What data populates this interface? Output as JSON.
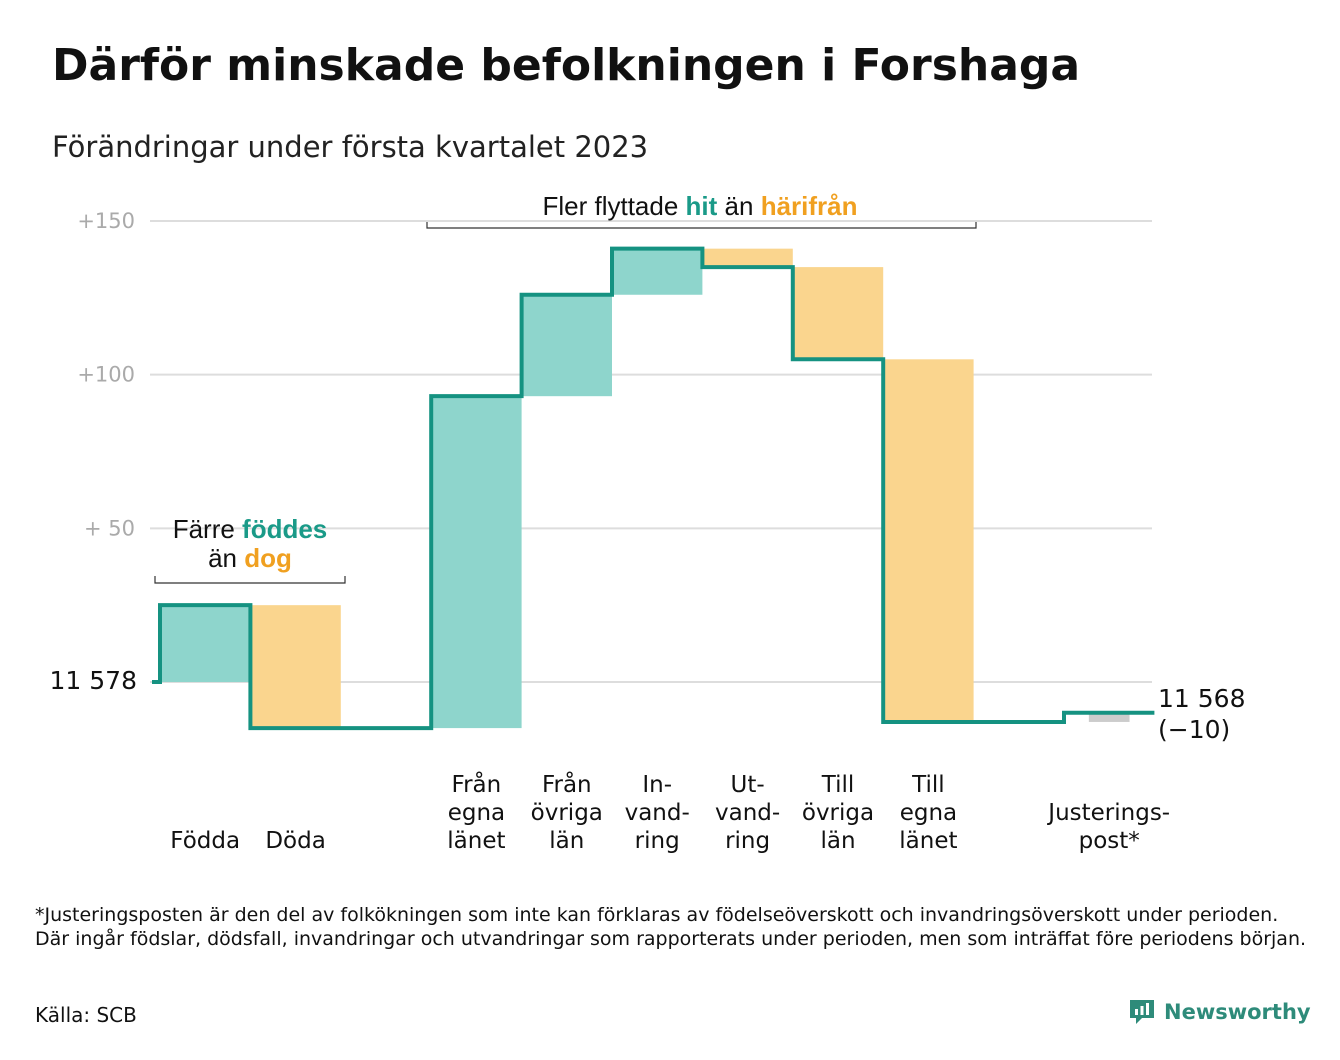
{
  "title": "Därför minskade befolkningen i Forshaga",
  "subtitle": "Förändringar under första kvartalet 2023",
  "footnote": "*Justeringsposten är den del av folkökningen som inte kan förklaras av födelseöverskott och invandringsöverskott under perioden. Där ingår födslar, dödsfall, invandringar och utvandringar som rapporterats under perioden, men som inträffat före periodens början.",
  "source": "Källa: SCB",
  "brand": "Newsworthy",
  "colors": {
    "inflow": "#8ed5cc",
    "outflow": "#fad58e",
    "adjustment": "#cccccc",
    "line": "#159281",
    "accent_teal": "#1a9a88",
    "accent_orange": "#f0a020",
    "grid": "#dddddd",
    "tick": "#aaaaaa"
  },
  "annotations": {
    "births": {
      "prefix": "Färre ",
      "hl1": "föddes",
      "line2_prefix": "än ",
      "hl2": "dog"
    },
    "moves": {
      "prefix": "Fler flyttade ",
      "hl1": "hit",
      "mid": " än ",
      "hl2": "härifrån"
    }
  },
  "chart_data": {
    "type": "waterfall",
    "baseline": 11578,
    "start_label": "11 578",
    "end_label": "11 568",
    "end_change_label": "(−10)",
    "yticks": [
      {
        "value": 11728,
        "label": "+150"
      },
      {
        "value": 11678,
        "label": "+100"
      },
      {
        "value": 11628,
        "label": "+ 50"
      }
    ],
    "ylim": [
      11560,
      11730
    ],
    "steps": [
      {
        "label": [
          "Födda"
        ],
        "delta": 25,
        "kind": "in"
      },
      {
        "label": [
          "Döda"
        ],
        "delta": -40,
        "kind": "out"
      },
      {
        "label": [
          "Från",
          "egna",
          "länet"
        ],
        "delta": 108,
        "kind": "in"
      },
      {
        "label": [
          "Från",
          "övriga",
          "län"
        ],
        "delta": 33,
        "kind": "in"
      },
      {
        "label": [
          "In-",
          "vand-",
          "ring"
        ],
        "delta": 15,
        "kind": "in"
      },
      {
        "label": [
          "Ut-",
          "vand-",
          "ring"
        ],
        "delta": -6,
        "kind": "out"
      },
      {
        "label": [
          "Till",
          "övriga",
          "län"
        ],
        "delta": -30,
        "kind": "out"
      },
      {
        "label": [
          "Till",
          "egna",
          "länet"
        ],
        "delta": -118,
        "kind": "out"
      },
      {
        "label": [
          "Justerings-",
          "post*"
        ],
        "delta": 3,
        "kind": "adj"
      }
    ],
    "grid": true
  }
}
